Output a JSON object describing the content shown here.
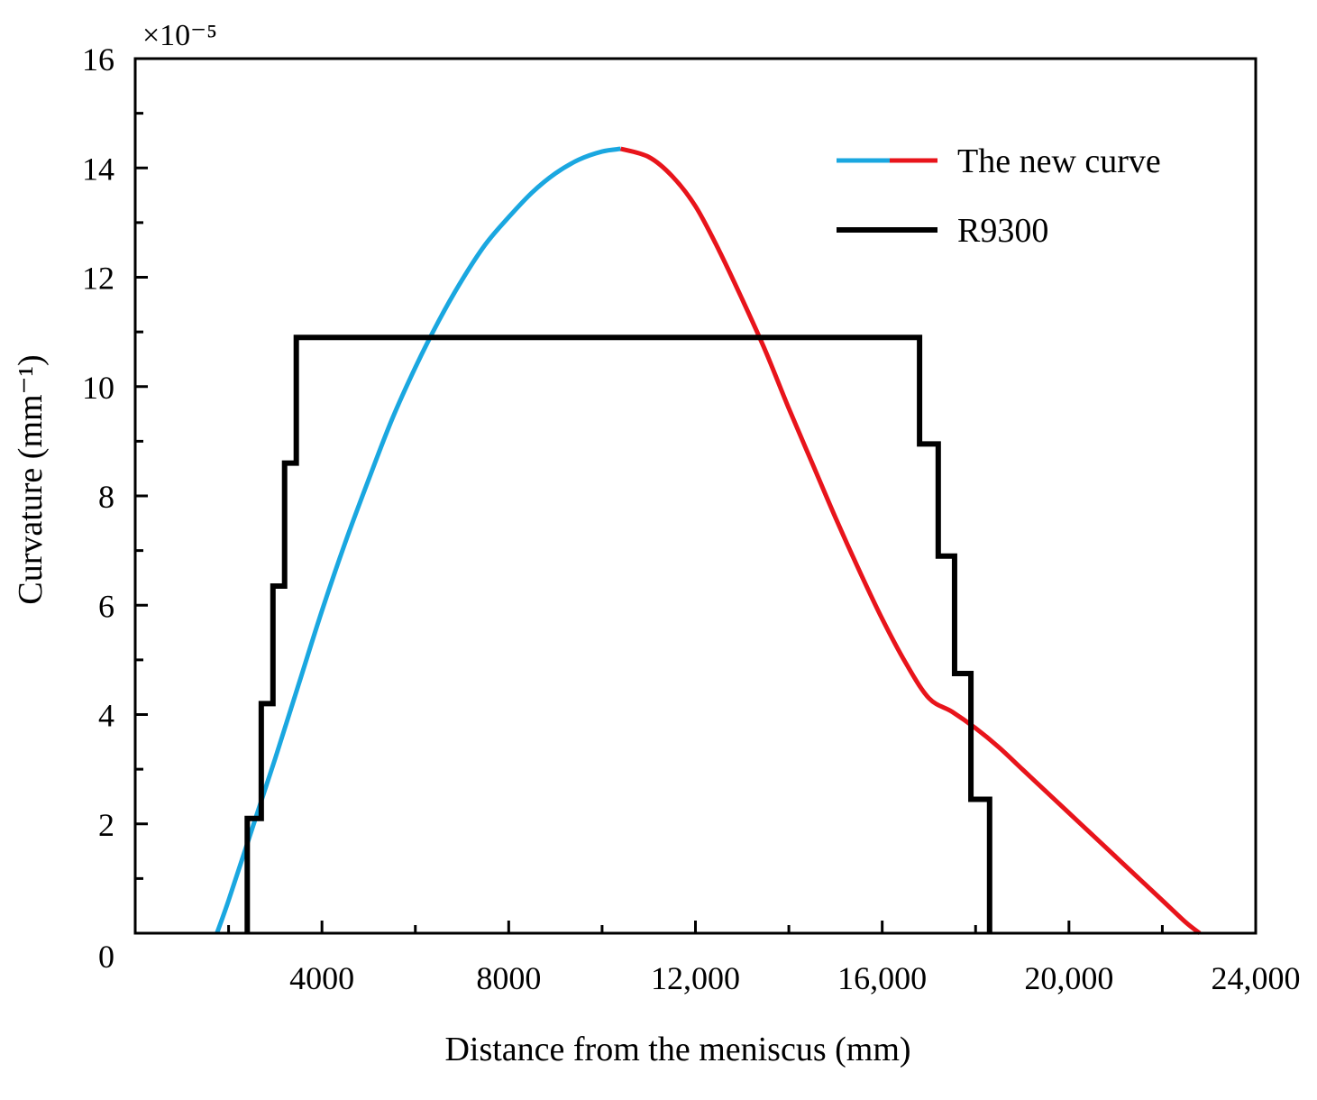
{
  "chart_data": {
    "type": "line",
    "title": "",
    "xlabel": "Distance from the meniscus (mm)",
    "ylabel": "Curvature (mm⁻¹)",
    "y_multiplier": "×10⁻⁵",
    "xlim": [
      0,
      24000
    ],
    "ylim": [
      0,
      16
    ],
    "x_ticks": [
      4000,
      8000,
      12000,
      16000,
      20000,
      24000
    ],
    "x_tick_labels": [
      "4000",
      "8000",
      "12,000",
      "16,000",
      "20,000",
      "24,000"
    ],
    "y_ticks": [
      0,
      2,
      4,
      6,
      8,
      10,
      12,
      14,
      16
    ],
    "y_tick_labels": [
      "0",
      "2",
      "4",
      "6",
      "8",
      "10",
      "12",
      "14",
      "16"
    ],
    "legend_position": "top-right",
    "series": [
      {
        "name": "The new curve",
        "colors": {
          "rising": "#1aa7e0",
          "falling": "#e8141b"
        },
        "peak_x": 10400,
        "x": [
          1750,
          2000,
          2500,
          3000,
          3500,
          4000,
          4500,
          5000,
          5500,
          6000,
          6500,
          7000,
          7500,
          8000,
          8500,
          9000,
          9500,
          10000,
          10400,
          11000,
          11500,
          12000,
          12500,
          13000,
          13500,
          14000,
          14500,
          15000,
          15500,
          16000,
          16500,
          17000,
          17500,
          18000,
          18500,
          19000,
          19500,
          20000,
          20500,
          21000,
          21500,
          22000,
          22500,
          22800
        ],
        "values": [
          0,
          0.6,
          1.9,
          3.2,
          4.55,
          5.9,
          7.15,
          8.3,
          9.4,
          10.35,
          11.2,
          11.95,
          12.6,
          13.1,
          13.55,
          13.9,
          14.15,
          14.3,
          14.35,
          14.2,
          13.85,
          13.3,
          12.5,
          11.6,
          10.65,
          9.6,
          8.6,
          7.6,
          6.65,
          5.75,
          4.95,
          4.3,
          4.05,
          3.75,
          3.4,
          3.0,
          2.6,
          2.2,
          1.8,
          1.4,
          1.0,
          0.6,
          0.2,
          0
        ]
      },
      {
        "name": "R9300",
        "color": "#000000",
        "step": true,
        "x": [
          2400,
          2400,
          2700,
          2700,
          2950,
          2950,
          3200,
          3200,
          3450,
          3450,
          16800,
          16800,
          17200,
          17200,
          17550,
          17550,
          17900,
          17900,
          18300,
          18300
        ],
        "values": [
          0,
          2.1,
          2.1,
          4.2,
          4.2,
          6.35,
          6.35,
          8.6,
          8.6,
          10.9,
          10.9,
          8.95,
          8.95,
          6.9,
          6.9,
          4.75,
          4.75,
          2.45,
          2.45,
          0
        ]
      }
    ]
  }
}
